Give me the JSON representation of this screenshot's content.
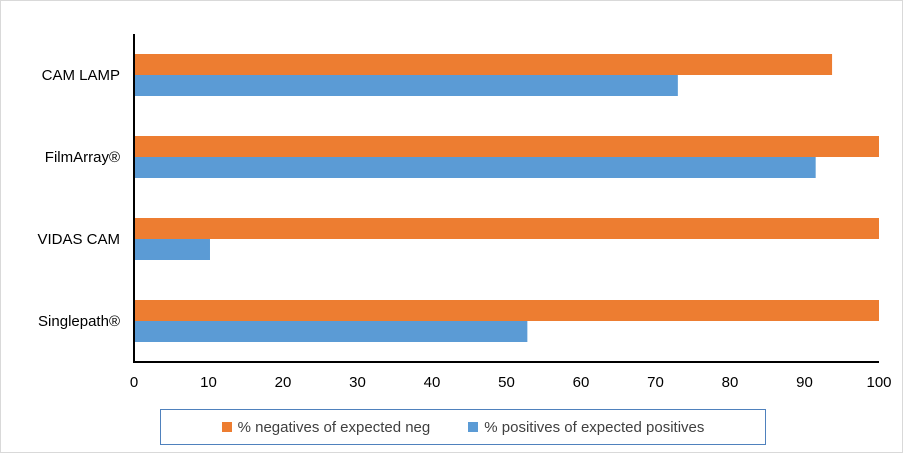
{
  "chart_data": {
    "type": "bar",
    "orientation": "horizontal",
    "categories": [
      "CAM LAMP",
      "FilmArray®",
      "VIDAS CAM",
      "Singlepath®"
    ],
    "series": [
      {
        "name": "% negatives of expected neg",
        "values": [
          93.7,
          100,
          100,
          100
        ],
        "color": "#ed7d31"
      },
      {
        "name": "% positives of expected positives",
        "values": [
          73.0,
          91.5,
          10.2,
          52.8
        ],
        "color": "#5b9bd5"
      }
    ],
    "xlim": [
      0,
      100
    ],
    "xticks": [
      "0",
      "10",
      "20",
      "30",
      "40",
      "50",
      "60",
      "70",
      "80",
      "90",
      "100"
    ],
    "grid": false,
    "legend_position": "bottom",
    "title": "",
    "xlabel": "",
    "ylabel": ""
  }
}
